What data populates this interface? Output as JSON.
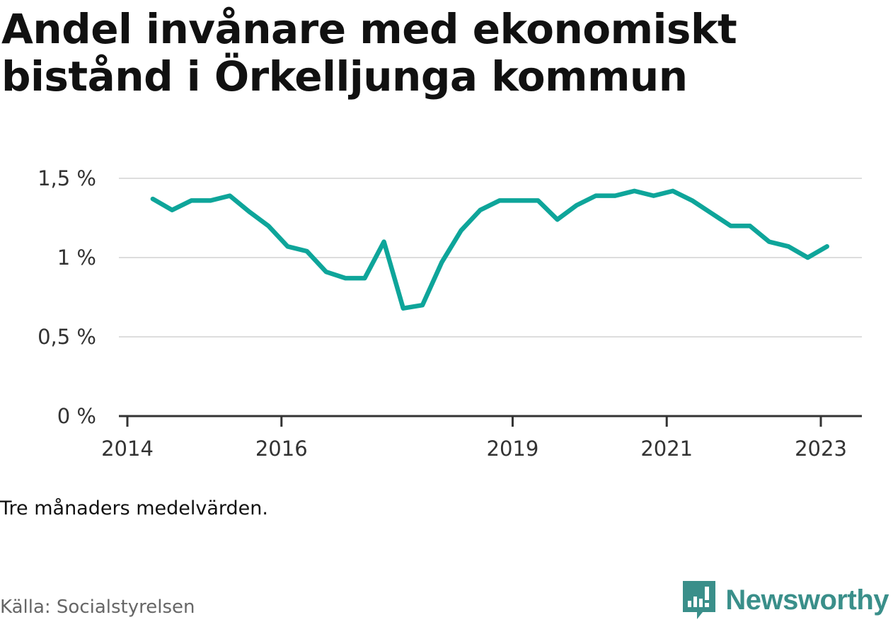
{
  "title": "Andel invånare med ekonomiskt bistånd i Örkelljunga kommun",
  "note": "Tre månaders medelvärden.",
  "source": "Källa: Socialstyrelsen",
  "brand": {
    "name": "Newsworthy",
    "icon": "newsworthy-logo-icon",
    "color": "#3a8f8a"
  },
  "chart_data": {
    "type": "line",
    "title": "Andel invånare med ekonomiskt bistånd i Örkelljunga kommun",
    "xlabel": "",
    "ylabel": "",
    "ylim": [
      0,
      1.5
    ],
    "xlim": [
      2014.0,
      2023.25
    ],
    "grid": true,
    "y_ticks": [
      {
        "value": 0,
        "label": "0 %"
      },
      {
        "value": 0.5,
        "label": "0,5 %"
      },
      {
        "value": 1,
        "label": "1 %"
      },
      {
        "value": 1.5,
        "label": "1,5 %"
      }
    ],
    "x_ticks": [
      {
        "value": 2014,
        "label": "2014"
      },
      {
        "value": 2016,
        "label": "2016"
      },
      {
        "value": 2019,
        "label": "2019"
      },
      {
        "value": 2021,
        "label": "2021"
      },
      {
        "value": 2023,
        "label": "2023"
      }
    ],
    "series": [
      {
        "color": "#0ea59a",
        "x": [
          2014.33,
          2014.58,
          2014.83,
          2015.08,
          2015.33,
          2015.58,
          2015.83,
          2016.08,
          2016.33,
          2016.58,
          2016.83,
          2017.08,
          2017.33,
          2017.58,
          2017.83,
          2018.08,
          2018.33,
          2018.58,
          2018.83,
          2019.08,
          2019.33,
          2019.58,
          2019.83,
          2020.08,
          2020.33,
          2020.58,
          2020.83,
          2021.08,
          2021.33,
          2021.58,
          2021.83,
          2022.08,
          2022.33,
          2022.58,
          2022.83,
          2023.08
        ],
        "values": [
          1.37,
          1.3,
          1.36,
          1.36,
          1.39,
          1.29,
          1.2,
          1.07,
          1.04,
          0.91,
          0.87,
          0.87,
          1.1,
          0.68,
          0.7,
          0.97,
          1.17,
          1.3,
          1.36,
          1.36,
          1.36,
          1.24,
          1.33,
          1.39,
          1.39,
          1.42,
          1.39,
          1.42,
          1.36,
          1.28,
          1.2,
          1.2,
          1.1,
          1.07,
          1.0,
          1.07
        ]
      }
    ]
  }
}
